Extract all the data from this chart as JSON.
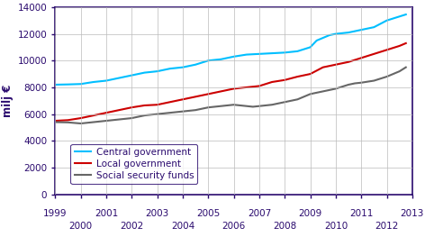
{
  "ylabel": "milj €",
  "xlim": [
    1999,
    2013
  ],
  "ylim": [
    0,
    14000
  ],
  "yticks": [
    0,
    2000,
    4000,
    6000,
    8000,
    10000,
    12000,
    14000
  ],
  "xticks_odd": [
    1999,
    2001,
    2003,
    2005,
    2007,
    2009,
    2011,
    2013
  ],
  "xticks_even": [
    2000,
    2002,
    2004,
    2006,
    2008,
    2010,
    2012
  ],
  "central_government": {
    "x": [
      1999,
      1999.5,
      2000,
      2000.5,
      2001,
      2001.5,
      2002,
      2002.5,
      2003,
      2003.5,
      2004,
      2004.5,
      2005,
      2005.5,
      2006,
      2006.5,
      2007,
      2007.5,
      2008,
      2008.5,
      2009,
      2009.25,
      2009.5,
      2009.75,
      2010,
      2010.5,
      2011,
      2011.5,
      2012,
      2012.5,
      2012.75
    ],
    "y": [
      8200,
      8220,
      8250,
      8400,
      8500,
      8700,
      8900,
      9100,
      9200,
      9400,
      9500,
      9700,
      10000,
      10100,
      10300,
      10450,
      10500,
      10550,
      10600,
      10700,
      11000,
      11500,
      11700,
      11900,
      12000,
      12100,
      12300,
      12500,
      13000,
      13300,
      13450
    ],
    "color": "#00BFFF",
    "label": "Central government"
  },
  "local_government": {
    "x": [
      1999,
      1999.5,
      2000,
      2000.5,
      2001,
      2001.5,
      2002,
      2002.5,
      2003,
      2003.5,
      2004,
      2004.5,
      2005,
      2005.5,
      2006,
      2006.5,
      2007,
      2007.5,
      2008,
      2008.5,
      2009,
      2009.5,
      2010,
      2010.5,
      2011,
      2011.5,
      2012,
      2012.5,
      2012.75
    ],
    "y": [
      5500,
      5550,
      5700,
      5900,
      6100,
      6300,
      6500,
      6650,
      6700,
      6900,
      7100,
      7300,
      7500,
      7700,
      7900,
      8000,
      8100,
      8400,
      8550,
      8800,
      9000,
      9500,
      9700,
      9900,
      10200,
      10500,
      10800,
      11100,
      11300
    ],
    "color": "#CC0000",
    "label": "Local government"
  },
  "social_security": {
    "x": [
      1999,
      1999.5,
      2000,
      2000.5,
      2001,
      2001.5,
      2002,
      2002.5,
      2003,
      2003.5,
      2004,
      2004.5,
      2005,
      2005.5,
      2006,
      2006.25,
      2006.5,
      2006.75,
      2007,
      2007.5,
      2008,
      2008.5,
      2009,
      2009.5,
      2010,
      2010.25,
      2010.5,
      2010.75,
      2011,
      2011.5,
      2012,
      2012.5,
      2012.75
    ],
    "y": [
      5400,
      5380,
      5300,
      5400,
      5500,
      5600,
      5700,
      5900,
      6000,
      6100,
      6200,
      6300,
      6500,
      6600,
      6700,
      6650,
      6600,
      6550,
      6600,
      6700,
      6900,
      7100,
      7500,
      7700,
      7900,
      8050,
      8200,
      8300,
      8350,
      8500,
      8800,
      9200,
      9500
    ],
    "color": "#666666",
    "label": "Social security funds"
  },
  "background_color": "#ffffff",
  "grid_color": "#bbbbbb",
  "spine_color": "#2a0a6e",
  "tick_label_color": "#2a0a6e",
  "ylabel_color": "#2a0a6e"
}
